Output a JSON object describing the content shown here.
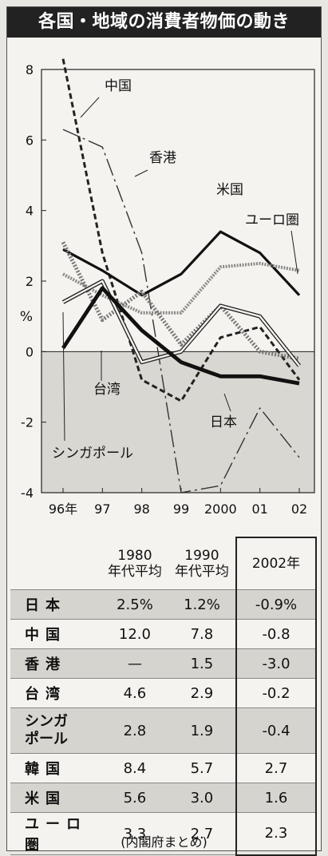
{
  "title": "各国・地域の消費者物価の動き",
  "chart_data": {
    "type": "line",
    "ylabel": "%",
    "x": [
      "96年",
      "97",
      "98",
      "99",
      "2000",
      "01",
      "02"
    ],
    "yticks": [
      "8",
      "6",
      "4",
      "2",
      "0",
      "-2",
      "-4"
    ],
    "ylim": [
      -4,
      8
    ],
    "series": [
      {
        "name": "中国",
        "values": [
          8.3,
          2.8,
          -0.8,
          -1.4,
          0.4,
          0.7,
          -0.8
        ]
      },
      {
        "name": "香港",
        "values": [
          6.3,
          5.8,
          2.8,
          -4.0,
          -3.8,
          -1.6,
          -3.0
        ]
      },
      {
        "name": "米国",
        "values": [
          2.9,
          2.3,
          1.6,
          2.2,
          3.4,
          2.8,
          1.6
        ]
      },
      {
        "name": "ユーロ圏",
        "values": [
          2.2,
          1.6,
          1.1,
          1.1,
          2.4,
          2.5,
          2.3
        ]
      },
      {
        "name": "台湾",
        "values": [
          3.1,
          0.9,
          1.7,
          0.2,
          1.3,
          0.0,
          -0.2
        ]
      },
      {
        "name": "シンガポール",
        "values": [
          1.4,
          2.0,
          -0.3,
          0.0,
          1.3,
          1.0,
          -0.4
        ]
      },
      {
        "name": "日本",
        "values": [
          0.1,
          1.8,
          0.6,
          -0.3,
          -0.7,
          -0.7,
          -0.9
        ]
      }
    ]
  },
  "table": {
    "headers": [
      "1980\n年代平均",
      "1990\n年代平均",
      "2002年"
    ],
    "rows": [
      {
        "label": "日本",
        "v1980": "2.5%",
        "v1990": "1.2%",
        "v2002": "-0.9%"
      },
      {
        "label": "中国",
        "v1980": "12.0",
        "v1990": "7.8",
        "v2002": "-0.8"
      },
      {
        "label": "香港",
        "v1980": "—",
        "v1990": "1.5",
        "v2002": "-3.0"
      },
      {
        "label": "台湾",
        "v1980": "4.6",
        "v1990": "2.9",
        "v2002": "-0.2"
      },
      {
        "label": "シンガ\nポール",
        "v1980": "2.8",
        "v1990": "1.9",
        "v2002": "-0.4"
      },
      {
        "label": "韓国",
        "v1980": "8.4",
        "v1990": "5.7",
        "v2002": "2.7"
      },
      {
        "label": "米国",
        "v1980": "5.6",
        "v1990": "3.0",
        "v2002": "1.6"
      },
      {
        "label": "ユーロ圏",
        "v1980": "3.3",
        "v1990": "2.7",
        "v2002": "2.3"
      }
    ]
  },
  "source": "(内閣府まとめ)"
}
